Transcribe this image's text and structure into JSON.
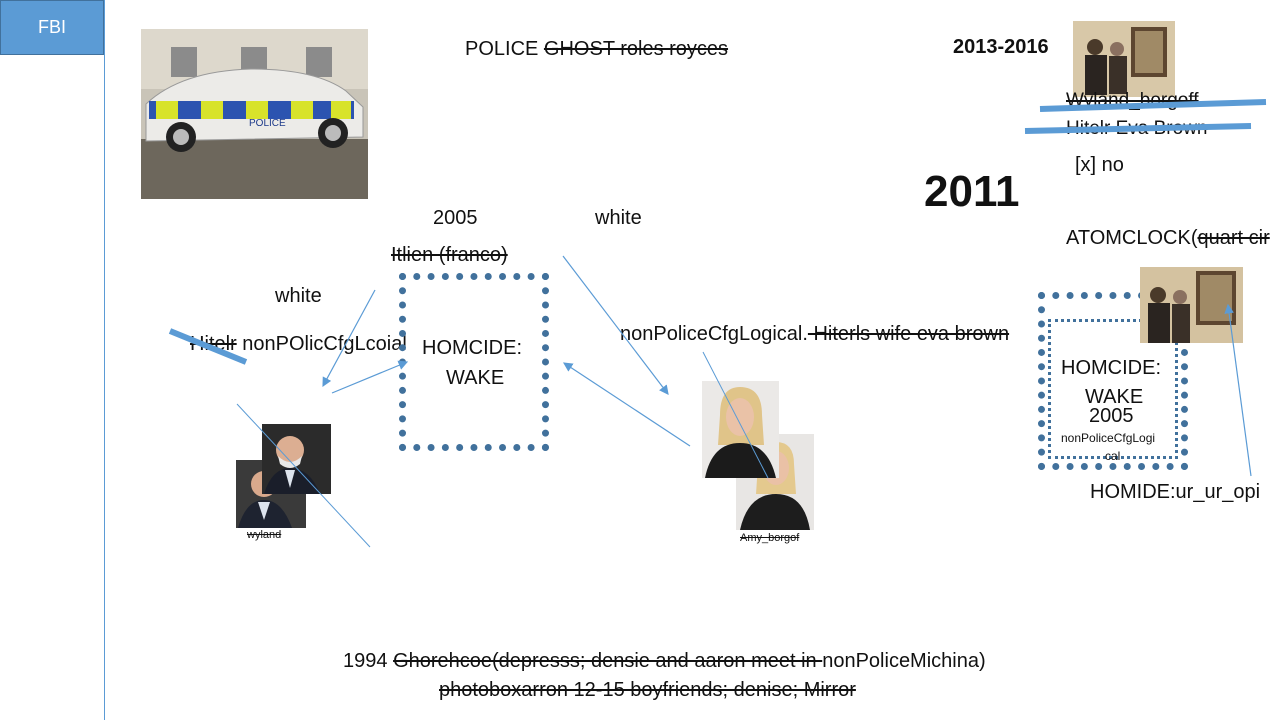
{
  "tab": {
    "label": "FBI"
  },
  "top": {
    "police_prefix": "POLICE ",
    "police_struck": "GHOST roles royces",
    "years_range": "2013-2016",
    "year_big": "2011",
    "wyland_struck": "Wyland_borgoff",
    "hitler_struck": "Hitelr  Eva Brown",
    "no_label": "[x] no",
    "atom_prefix": "ATOMCLOCK(",
    "atom_struck": "quart cir"
  },
  "middle": {
    "year_2005": "2005",
    "white_right": "white",
    "italien_struck": "Itlien (franco)",
    "white_left": "white",
    "hitelr_struck": "Hitelr",
    "nonpolic_left": " nonPOlicCfgLcoial",
    "box1_line1": "HOMCIDE:",
    "box1_line2": "WAKE",
    "nonpolice_center": "nonPoliceCfgLogical.",
    "hitlers_wife_struck": " Hiterls wife eva brown"
  },
  "right_box": {
    "line1": "HOMCIDE:",
    "line2": "WAKE",
    "line3": "2005",
    "small1": "nonPoliceCfgLogi",
    "small2": "cal",
    "homide": "HOMIDE:ur_ur_opi"
  },
  "captions": {
    "wyland": "wyland",
    "amy": "Amy_borgof"
  },
  "car": {
    "plate_text": "POLICE"
  },
  "bottom": {
    "line1_prefix": "1994 ",
    "line1_struck": "Ghorehcoe(depresss; densie and aaron meet in ",
    "line1_suffix": "nonPoliceMichina)",
    "line2_struck": "photoboxarron 12-15 boyfriends; denise;  Mirror"
  },
  "colors": {
    "accent": "#5b9bd5",
    "dash": "#41719c"
  }
}
